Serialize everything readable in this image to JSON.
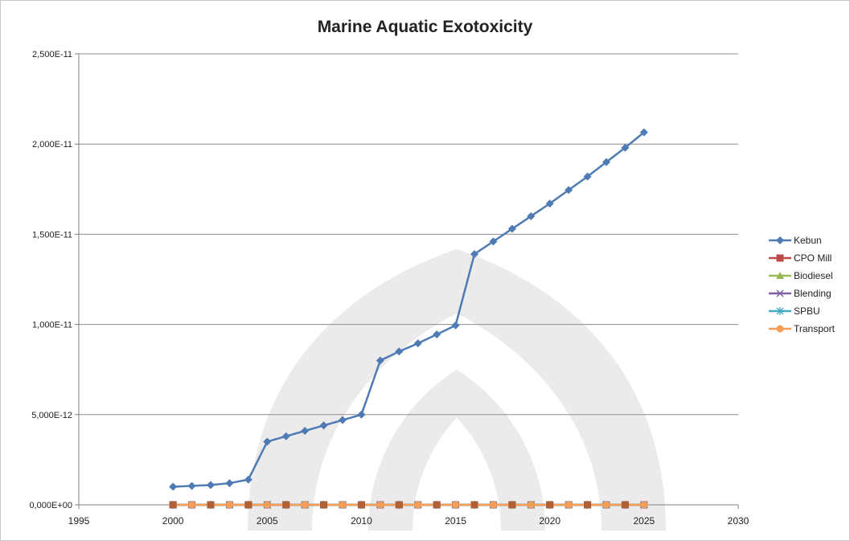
{
  "chart_data": {
    "type": "line",
    "title": "Marine Aquatic Exotoxicity",
    "xlabel": "",
    "ylabel": "",
    "xlim": [
      1995,
      2030
    ],
    "ylim": [
      0,
      2.5e-11
    ],
    "x_ticks": [
      1995,
      2000,
      2005,
      2010,
      2015,
      2020,
      2025,
      2030
    ],
    "x_tick_labels": [
      "1995",
      "2000",
      "2005",
      "2010",
      "2015",
      "2020",
      "2025",
      "2030"
    ],
    "y_ticks": [
      0,
      5e-12,
      1e-11,
      1.5e-11,
      2e-11,
      2.5e-11
    ],
    "y_tick_labels": [
      "0,000E+00",
      "5,000E-12",
      "1,000E-11",
      "1,500E-11",
      "2,000E-11",
      "2,500E-11"
    ],
    "grid": "horizontal",
    "legend_position": "right",
    "x": [
      2000,
      2001,
      2002,
      2003,
      2004,
      2005,
      2006,
      2007,
      2008,
      2009,
      2010,
      2011,
      2012,
      2013,
      2014,
      2015,
      2016,
      2017,
      2018,
      2019,
      2020,
      2021,
      2022,
      2023,
      2024,
      2025
    ],
    "series": [
      {
        "name": "Kebun",
        "color": "#4f7bb5",
        "marker": "diamond",
        "values": [
          1e-12,
          1.05e-12,
          1.1e-12,
          1.2e-12,
          1.4e-12,
          3.5e-12,
          3.8e-12,
          4.1e-12,
          4.4e-12,
          4.7e-12,
          5e-12,
          8e-12,
          8.5e-12,
          8.95e-12,
          9.45e-12,
          9.95e-12,
          1.39e-11,
          1.46e-11,
          1.53e-11,
          1.6e-11,
          1.67e-11,
          1.745e-11,
          1.82e-11,
          1.9e-11,
          1.98e-11,
          2.065e-11
        ]
      },
      {
        "name": "CPO Mill",
        "color": "#be4b48",
        "marker": "square",
        "values": [
          0,
          0,
          0,
          0,
          0,
          0,
          0,
          0,
          0,
          0,
          0,
          0,
          0,
          0,
          0,
          0,
          0,
          0,
          0,
          0,
          0,
          0,
          0,
          0,
          0,
          0
        ]
      },
      {
        "name": "Biodiesel",
        "color": "#98b954",
        "marker": "triangle",
        "values": [
          0,
          0,
          0,
          0,
          0,
          0,
          0,
          0,
          0,
          0,
          0,
          0,
          0,
          0,
          0,
          0,
          0,
          0,
          0,
          0,
          0,
          0,
          0,
          0,
          0,
          0
        ]
      },
      {
        "name": "Blending",
        "color": "#7d60a0",
        "marker": "x",
        "values": [
          0,
          0,
          0,
          0,
          0,
          0,
          0,
          0,
          0,
          0,
          0,
          0,
          0,
          0,
          0,
          0,
          0,
          0,
          0,
          0,
          0,
          0,
          0,
          0,
          0,
          0
        ]
      },
      {
        "name": "SPBU",
        "color": "#46aac5",
        "marker": "star",
        "values": [
          0,
          0,
          0,
          0,
          0,
          0,
          0,
          0,
          0,
          0,
          0,
          0,
          0,
          0,
          0,
          0,
          0,
          0,
          0,
          0,
          0,
          0,
          0,
          0,
          0,
          0
        ]
      },
      {
        "name": "Transport",
        "color": "#f59d56",
        "marker": "circle",
        "values": [
          0,
          0,
          0,
          0,
          0,
          0,
          0,
          0,
          0,
          0,
          0,
          0,
          0,
          0,
          0,
          0,
          0,
          0,
          0,
          0,
          0,
          0,
          0,
          0,
          0,
          0
        ]
      }
    ]
  }
}
